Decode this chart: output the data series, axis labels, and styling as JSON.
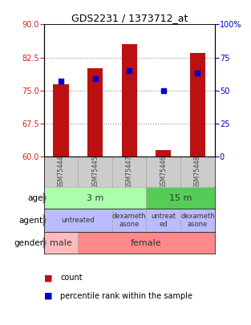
{
  "title": "GDS2231 / 1373712_at",
  "samples": [
    "GSM75444",
    "GSM75445",
    "GSM75447",
    "GSM75446",
    "GSM75448"
  ],
  "bar_values": [
    76.5,
    80.0,
    85.5,
    61.5,
    83.5
  ],
  "bar_base": 60,
  "bar_color": "#bb1111",
  "percentile_values": [
    57,
    59,
    65,
    50,
    63
  ],
  "percentile_color": "#0000cc",
  "ylim": [
    60,
    90
  ],
  "ylim_right": [
    0,
    100
  ],
  "yticks_left": [
    60,
    67.5,
    75,
    82.5,
    90
  ],
  "yticks_right": [
    0,
    25,
    50,
    75,
    100
  ],
  "left_tick_color": "#cc2222",
  "right_tick_color": "#0000cc",
  "grid_yticks": [
    67.5,
    75,
    82.5
  ],
  "grid_color": "#888888",
  "age_spans": [
    [
      "3 m",
      0,
      3,
      "#aaffaa"
    ],
    [
      "15 m",
      3,
      5,
      "#55cc55"
    ]
  ],
  "agent_spans": [
    [
      "untreated",
      0,
      2,
      "#bbbbff"
    ],
    [
      "dexameth\nasone",
      2,
      3,
      "#bbbbff"
    ],
    [
      "untreat\ned",
      3,
      4,
      "#bbbbff"
    ],
    [
      "dexameth\nasone",
      4,
      5,
      "#bbbbff"
    ]
  ],
  "gender_spans": [
    [
      "male",
      0,
      1,
      "#ffbbbb"
    ],
    [
      "female",
      1,
      5,
      "#ff8888"
    ]
  ],
  "sample_col_color": "#cccccc",
  "sample_text_color": "#444444",
  "row_labels": [
    "age",
    "agent",
    "gender"
  ],
  "legend_count_color": "#bb1111",
  "legend_pct_color": "#0000cc",
  "legend_count_label": "count",
  "legend_pct_label": "percentile rank within the sample"
}
